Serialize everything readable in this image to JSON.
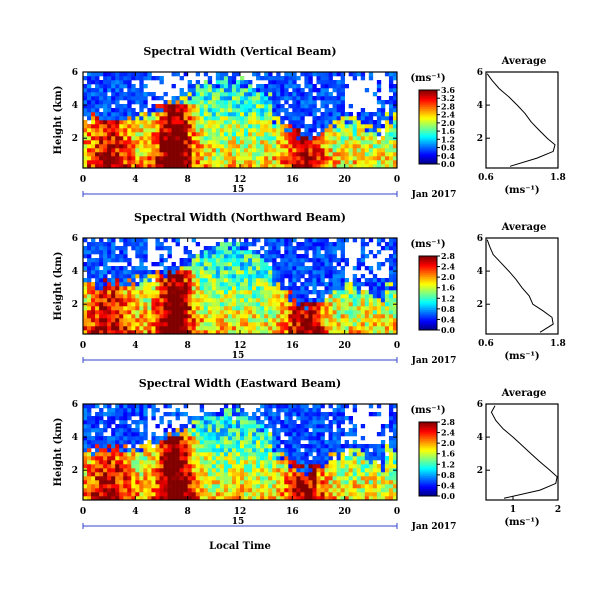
{
  "figure": {
    "xlabel": "Local Time",
    "date_label": "15",
    "month_label": "Jan 2017"
  },
  "chart_data": [
    {
      "type": "heatmap",
      "title": "Spectral Width (Vertical Beam)",
      "ylabel": "Height (km)",
      "xlim": [
        0,
        24
      ],
      "ylim": [
        0.2,
        6
      ],
      "xticks": [
        "0",
        "4",
        "8",
        "12",
        "16",
        "20",
        "0"
      ],
      "yticks": [
        "2",
        "4",
        "6"
      ],
      "colorbar": {
        "unit": "(ms⁻¹)",
        "min": 0,
        "max": 3.6,
        "ticks": [
          "0.0",
          "0.4",
          "0.8",
          "1.2",
          "1.6",
          "2.0",
          "2.4",
          "2.8",
          "3.2",
          "3.6"
        ]
      },
      "profile": {
        "title": "Average",
        "xlabel": "(ms⁻¹)",
        "xlim": [
          0.6,
          1.8
        ],
        "xticks": [
          "0.6",
          "1.8"
        ],
        "yticks": [
          "2",
          "4",
          "6"
        ],
        "height": [
          0.3,
          0.8,
          1.2,
          1.6,
          2.0,
          2.5,
          3.0,
          3.5,
          4.0,
          4.5,
          5.0,
          5.5,
          5.9
        ],
        "width": [
          1.0,
          1.45,
          1.72,
          1.75,
          1.62,
          1.48,
          1.35,
          1.25,
          1.12,
          0.98,
          0.82,
          0.7,
          0.62
        ]
      },
      "gap_frac": 0.0
    },
    {
      "type": "heatmap",
      "title": "Spectral Width (Northward Beam)",
      "ylabel": "Height (km)",
      "xlim": [
        0,
        24
      ],
      "ylim": [
        0.2,
        6
      ],
      "xticks": [
        "0",
        "4",
        "8",
        "12",
        "16",
        "20",
        "0"
      ],
      "yticks": [
        "2",
        "4",
        "6"
      ],
      "colorbar": {
        "unit": "(ms⁻¹)",
        "min": 0,
        "max": 2.8,
        "ticks": [
          "0.0",
          "0.4",
          "0.8",
          "1.2",
          "1.6",
          "2.0",
          "2.4",
          "2.8"
        ]
      },
      "profile": {
        "title": "Average",
        "xlabel": "(ms⁻¹)",
        "xlim": [
          0.6,
          1.8
        ],
        "xticks": [
          "0.6",
          "1.8"
        ],
        "yticks": [
          "2",
          "4",
          "6"
        ],
        "height": [
          0.3,
          0.8,
          1.2,
          1.6,
          2.0,
          2.5,
          3.0,
          3.5,
          4.0,
          4.5,
          5.0,
          5.5,
          5.9
        ],
        "width": [
          1.5,
          1.72,
          1.7,
          1.55,
          1.38,
          1.32,
          1.2,
          1.1,
          0.98,
          0.85,
          0.72,
          0.66,
          0.62
        ]
      },
      "gap_frac": 0.0
    },
    {
      "type": "heatmap",
      "title": "Spectral Width (Eastward Beam)",
      "ylabel": "Height (km)",
      "xlim": [
        0,
        24
      ],
      "ylim": [
        0.2,
        6
      ],
      "xticks": [
        "0",
        "4",
        "8",
        "12",
        "16",
        "20",
        "0"
      ],
      "yticks": [
        "2",
        "4",
        "6"
      ],
      "colorbar": {
        "unit": "(ms⁻¹)",
        "min": 0,
        "max": 2.8,
        "ticks": [
          "0.0",
          "0.4",
          "0.8",
          "1.2",
          "1.6",
          "2.0",
          "2.4",
          "2.8"
        ]
      },
      "profile": {
        "title": "Average",
        "xlabel": "(ms⁻¹)",
        "xlim": [
          0.4,
          2.0
        ],
        "xticks": [
          "1",
          "2"
        ],
        "yticks": [
          "2",
          "4",
          "6"
        ],
        "height": [
          0.3,
          0.8,
          1.2,
          1.6,
          2.0,
          2.5,
          3.0,
          3.5,
          4.0,
          4.5,
          5.0,
          5.5,
          5.9
        ],
        "width": [
          0.8,
          1.6,
          1.95,
          1.98,
          1.82,
          1.6,
          1.4,
          1.2,
          1.0,
          0.78,
          0.62,
          0.52,
          0.6
        ]
      },
      "gap_frac": 0.0
    }
  ]
}
